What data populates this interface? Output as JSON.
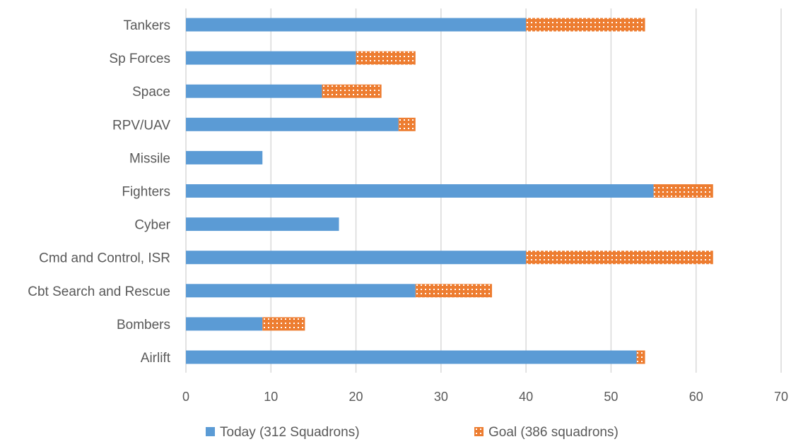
{
  "chart_data": {
    "type": "bar",
    "orientation": "horizontal",
    "stacked": true,
    "categories": [
      "Tankers",
      "Sp Forces",
      "Space",
      "RPV/UAV",
      "Missile",
      "Fighters",
      "Cyber",
      "Cmd and Control, ISR",
      "Cbt Search and Rescue",
      "Bombers",
      "Airlift"
    ],
    "series": [
      {
        "name": "Today (312 Squadrons)",
        "values": [
          40,
          20,
          16,
          25,
          9,
          55,
          18,
          40,
          27,
          9,
          53
        ],
        "color": "#5B9BD5",
        "pattern": "solid"
      },
      {
        "name": "Goal (386 squadrons)",
        "values": [
          14,
          7,
          7,
          2,
          0,
          7,
          0,
          22,
          9,
          5,
          1
        ],
        "color": "#ED7D31",
        "pattern": "dotted"
      }
    ],
    "xlim": [
      0,
      70
    ],
    "xticks": [
      0,
      10,
      20,
      30,
      40,
      50,
      60,
      70
    ],
    "grid": "vertical",
    "legend": "bottom"
  }
}
